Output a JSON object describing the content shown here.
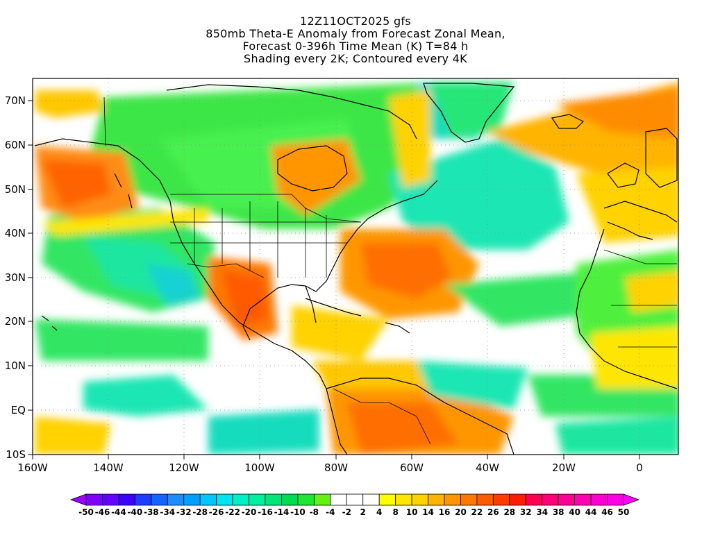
{
  "title": {
    "line1": "12Z11OCT2025 gfs",
    "line2": "850mb Theta-E Anomaly from Forecast Zonal Mean,",
    "line3": "Forecast 0-396h Time Mean (K) T=84 h",
    "line4": "Shading every 2K; Contoured every 4K"
  },
  "map": {
    "lon_ticks": [
      "160W",
      "140W",
      "120W",
      "100W",
      "80W",
      "60W",
      "40W",
      "20W",
      "0"
    ],
    "lat_ticks": [
      "70N",
      "60N",
      "50N",
      "40N",
      "30N",
      "20N",
      "10N",
      "EQ",
      "10S"
    ],
    "lon_range": [
      -160,
      10
    ],
    "lat_range": [
      -10,
      75
    ]
  },
  "colorbar": {
    "labels": [
      "-50",
      "-46",
      "-44",
      "-40",
      "-38",
      "-34",
      "-32",
      "-28",
      "-26",
      "-22",
      "-20",
      "-16",
      "-14",
      "-10",
      "-8",
      "-4",
      "-2",
      "2",
      "4",
      "8",
      "10",
      "14",
      "16",
      "20",
      "22",
      "26",
      "28",
      "32",
      "34",
      "38",
      "40",
      "44",
      "46",
      "50"
    ],
    "colors": [
      "#a000ff",
      "#8000ff",
      "#6400ff",
      "#3c00ff",
      "#1e3cff",
      "#1464ff",
      "#1e8cff",
      "#00a0ff",
      "#00c8ff",
      "#00e6f0",
      "#00f0c8",
      "#00f0a0",
      "#00e678",
      "#00dc50",
      "#1ee632",
      "#64f014",
      "#ffffff",
      "#ffffff",
      "#ffffff",
      "#ffff00",
      "#ffe600",
      "#ffd200",
      "#ffb400",
      "#ff9600",
      "#ff7800",
      "#ff5a00",
      "#ff3c00",
      "#ff1e00",
      "#ff0050",
      "#ff0078",
      "#ff0096",
      "#ff00b4",
      "#ff00d2",
      "#ff00e6",
      "#ff00ff"
    ]
  }
}
